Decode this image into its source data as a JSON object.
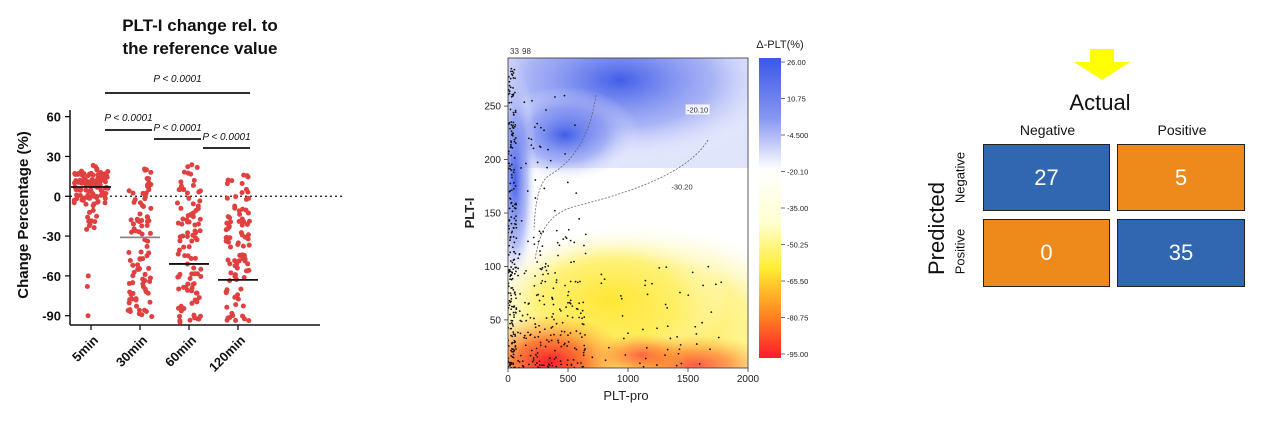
{
  "charts": [
    {
      "type": "scatter",
      "title_line1": "PLT-I change rel. to",
      "title_line2": "the reference value",
      "ylabel": "Change Percentage (%)",
      "categories": [
        "5min",
        "30min",
        "60min",
        "120min"
      ],
      "yticks": [
        "60",
        "30",
        "0",
        "-30",
        "-60",
        "-90"
      ],
      "ytick_values": [
        60,
        30,
        0,
        -30,
        -60,
        -90
      ],
      "ylim": [
        -97,
        65
      ],
      "reference_line_y": 0,
      "medians": [
        7,
        -31,
        -51,
        -63
      ],
      "marker_color": "#e04040",
      "comparisons": [
        {
          "from": 0,
          "to": 3,
          "label": "P < 0.0001"
        },
        {
          "from": 0,
          "to": 1,
          "label": "P < 0.0001"
        },
        {
          "from": 1,
          "to": 2,
          "label": "P < 0.0001"
        },
        {
          "from": 2,
          "to": 3,
          "label": "P < 0.0001"
        }
      ],
      "groups": [
        {
          "n": 110,
          "center": 7,
          "spread_low": -25,
          "spread_high": 28,
          "outliers": [
            -60,
            -68,
            -90
          ]
        },
        {
          "n": 95,
          "center": -31,
          "spread_low": -92,
          "spread_high": 24,
          "outliers": []
        },
        {
          "n": 100,
          "center": -51,
          "spread_low": -95,
          "spread_high": 24,
          "outliers": []
        },
        {
          "n": 95,
          "center": -63,
          "spread_low": -95,
          "spread_high": 19,
          "outliers": []
        }
      ]
    },
    {
      "type": "heatmap",
      "xlabel": "PLT-pro",
      "ylabel": "PLT-I",
      "xticks": [
        "0",
        "500",
        "1000",
        "1500",
        "2000"
      ],
      "xtick_values": [
        0,
        500,
        1000,
        1500,
        2000
      ],
      "yticks": [
        "50",
        "100",
        "150",
        "200",
        "250"
      ],
      "ytick_values": [
        50,
        100,
        150,
        200,
        250
      ],
      "xlim": [
        0,
        2000
      ],
      "ylim": [
        5,
        295
      ],
      "corner_label_left": "33",
      "corner_label_right": "98",
      "colorbar_title": "Δ-PLT(%)",
      "colorbar_ticks": [
        "26.00",
        "10.75",
        "-4.500",
        "-20.10",
        "-35.00",
        "-50.25",
        "-65.50",
        "-80.75",
        "-95.00"
      ],
      "contours": [
        {
          "label": "-20.10",
          "label_x": 1580,
          "label_y": 245
        },
        {
          "label": "-30.20",
          "label_x": 1450,
          "label_y": 173
        }
      ],
      "colors": {
        "high": "#3a57e8",
        "mid": "#ffffff",
        "low1": "#ffee33",
        "low2": "#ff8020",
        "low3": "#ff1a2e"
      }
    },
    {
      "type": "table",
      "title": "Actual",
      "arrow_color": "#ffff00",
      "column_headers": [
        "Negative",
        "Positive"
      ],
      "row_axis_title": "Predicted",
      "row_headers": [
        "Negative",
        "Positive"
      ],
      "cells": [
        [
          "27",
          "5"
        ],
        [
          "0",
          "35"
        ]
      ],
      "cell_colors": [
        [
          "#3166b0",
          "#ee8a1c"
        ],
        [
          "#ee8a1c",
          "#3166b0"
        ]
      ]
    }
  ]
}
